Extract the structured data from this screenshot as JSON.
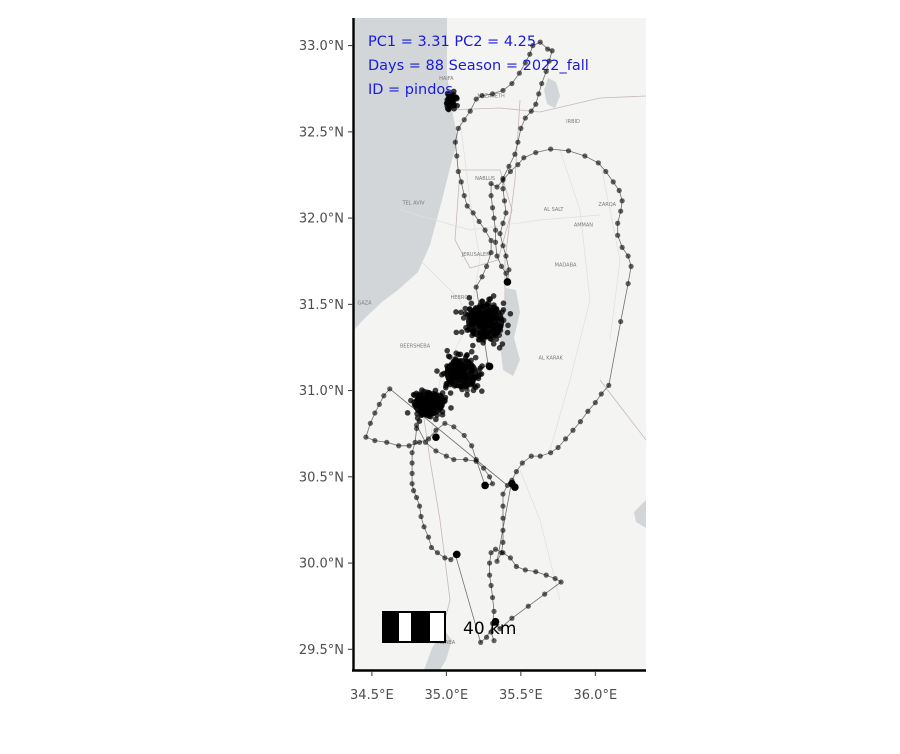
{
  "annotation": {
    "line1": "PC1 = 3.31  PC2 = 4.25",
    "line2": "Days = 88  Season = 2022_fall",
    "line3": "ID = pindos"
  },
  "scale_bar": {
    "label": "40 km"
  },
  "colors": {
    "sea": "#d2d6d8",
    "land": "#f4f4f2",
    "track": "#000000",
    "annotation": "#1a1adb"
  },
  "basemap_places": [
    "HAIFA",
    "NAZARETH",
    "IRBID",
    "TEL AVIV",
    "NABLUS",
    "AL SALT",
    "ZARQA",
    "AMMAN",
    "JERUSALEM",
    "HEBRON",
    "GAZA",
    "BEERSHEBA",
    "MADABA",
    "AL KARAK",
    "AQABA"
  ],
  "chart_data": {
    "type": "map",
    "xlim": [
      34.38,
      36.34
    ],
    "ylim": [
      29.38,
      33.16
    ],
    "x_ticks": [
      34.5,
      35.0,
      35.5,
      36.0
    ],
    "x_tick_labels": [
      "34.5°E",
      "35.0°E",
      "35.5°E",
      "36.0°E"
    ],
    "y_ticks": [
      29.5,
      30.0,
      30.5,
      31.0,
      31.5,
      32.0,
      32.5,
      33.0
    ],
    "y_tick_labels": [
      "29.5°N",
      "30.0°N",
      "30.5°N",
      "31.0°N",
      "31.5°N",
      "32.0°N",
      "32.5°N",
      "33.0°N"
    ],
    "grid": false,
    "track": [
      [
        35.32,
        29.55
      ],
      [
        35.3,
        29.6
      ],
      [
        35.31,
        29.65
      ],
      [
        35.32,
        29.72
      ],
      [
        35.31,
        29.8
      ],
      [
        35.3,
        29.87
      ],
      [
        35.29,
        29.93
      ],
      [
        35.29,
        30.0
      ],
      [
        35.3,
        30.06
      ],
      [
        35.33,
        30.08
      ],
      [
        35.38,
        30.06
      ],
      [
        35.43,
        30.03
      ],
      [
        35.47,
        29.98
      ],
      [
        35.53,
        29.96
      ],
      [
        35.6,
        29.95
      ],
      [
        35.67,
        29.93
      ],
      [
        35.73,
        29.91
      ],
      [
        35.77,
        29.89
      ],
      [
        35.66,
        29.82
      ],
      [
        35.55,
        29.75
      ],
      [
        35.44,
        29.68
      ],
      [
        35.36,
        29.62
      ],
      [
        35.32,
        29.65
      ],
      [
        35.27,
        29.57
      ],
      [
        35.23,
        29.54
      ],
      [
        35.06,
        30.05
      ],
      [
        35.03,
        30.02
      ],
      [
        34.99,
        30.03
      ],
      [
        34.94,
        30.06
      ],
      [
        34.9,
        30.09
      ],
      [
        34.88,
        30.15
      ],
      [
        34.85,
        30.21
      ],
      [
        34.83,
        30.27
      ],
      [
        34.82,
        30.33
      ],
      [
        34.8,
        30.38
      ],
      [
        34.78,
        30.42
      ],
      [
        34.77,
        30.46
      ],
      [
        34.77,
        30.52
      ],
      [
        34.77,
        30.58
      ],
      [
        34.77,
        30.64
      ],
      [
        34.79,
        30.7
      ],
      [
        34.8,
        30.78
      ],
      [
        34.8,
        30.8
      ],
      [
        34.86,
        30.7
      ],
      [
        34.93,
        30.65
      ],
      [
        35.0,
        30.62
      ],
      [
        35.05,
        30.6
      ],
      [
        35.13,
        30.6
      ],
      [
        35.2,
        30.59
      ],
      [
        35.25,
        30.55
      ],
      [
        35.29,
        30.5
      ],
      [
        35.31,
        30.46
      ],
      [
        35.26,
        30.45
      ],
      [
        35.2,
        30.6
      ],
      [
        35.17,
        30.68
      ],
      [
        35.12,
        30.74
      ],
      [
        35.05,
        30.79
      ],
      [
        34.99,
        30.81
      ],
      [
        34.93,
        30.77
      ],
      [
        34.88,
        30.72
      ],
      [
        34.82,
        30.7
      ],
      [
        34.75,
        30.68
      ],
      [
        34.68,
        30.68
      ],
      [
        34.6,
        30.7
      ],
      [
        34.52,
        30.71
      ],
      [
        34.46,
        30.73
      ],
      [
        34.49,
        30.81
      ],
      [
        34.52,
        30.87
      ],
      [
        34.55,
        30.92
      ],
      [
        34.58,
        30.97
      ],
      [
        34.62,
        31.01
      ],
      [
        35.41,
        30.45
      ],
      [
        35.38,
        30.4
      ],
      [
        35.38,
        30.33
      ],
      [
        35.38,
        30.26
      ],
      [
        35.38,
        30.19
      ],
      [
        35.38,
        30.12
      ],
      [
        35.37,
        30.06
      ],
      [
        35.34,
        30.01
      ],
      [
        35.44,
        30.48
      ],
      [
        35.47,
        30.53
      ],
      [
        35.51,
        30.58
      ],
      [
        35.57,
        30.62
      ],
      [
        35.63,
        30.62
      ],
      [
        35.7,
        30.64
      ],
      [
        35.75,
        30.67
      ],
      [
        35.8,
        30.72
      ],
      [
        35.85,
        30.77
      ],
      [
        35.9,
        30.82
      ],
      [
        35.95,
        30.88
      ],
      [
        36.0,
        30.93
      ],
      [
        36.04,
        30.98
      ],
      [
        36.09,
        31.03
      ],
      [
        36.17,
        31.4
      ],
      [
        36.22,
        31.62
      ],
      [
        36.24,
        31.72
      ],
      [
        36.22,
        31.78
      ],
      [
        36.18,
        31.83
      ],
      [
        36.15,
        31.9
      ],
      [
        36.15,
        31.97
      ],
      [
        36.17,
        32.04
      ],
      [
        36.18,
        32.1
      ],
      [
        36.16,
        32.16
      ],
      [
        36.12,
        32.21
      ],
      [
        36.07,
        32.27
      ],
      [
        36.02,
        32.32
      ],
      [
        35.93,
        32.36
      ],
      [
        35.82,
        32.39
      ],
      [
        35.7,
        32.4
      ],
      [
        35.6,
        32.38
      ],
      [
        35.52,
        32.35
      ],
      [
        35.48,
        32.31
      ],
      [
        35.43,
        32.27
      ],
      [
        35.38,
        32.22
      ],
      [
        35.34,
        32.18
      ],
      [
        35.3,
        32.2
      ],
      [
        35.3,
        32.13
      ],
      [
        35.31,
        32.06
      ],
      [
        35.32,
        32.0
      ],
      [
        35.33,
        31.93
      ],
      [
        35.33,
        31.86
      ],
      [
        35.34,
        31.78
      ],
      [
        35.37,
        31.72
      ],
      [
        35.4,
        31.68
      ],
      [
        35.41,
        31.63
      ],
      [
        35.42,
        31.7
      ],
      [
        35.4,
        31.78
      ],
      [
        35.38,
        31.84
      ],
      [
        35.36,
        31.91
      ],
      [
        35.38,
        31.97
      ],
      [
        35.4,
        32.03
      ],
      [
        35.39,
        32.1
      ],
      [
        35.38,
        32.17
      ],
      [
        35.38,
        32.23
      ],
      [
        35.42,
        32.3
      ],
      [
        35.46,
        32.37
      ],
      [
        35.48,
        32.44
      ],
      [
        35.5,
        32.52
      ],
      [
        35.53,
        32.58
      ],
      [
        35.57,
        32.62
      ],
      [
        35.6,
        32.66
      ],
      [
        35.62,
        32.72
      ],
      [
        35.64,
        32.78
      ],
      [
        35.67,
        32.85
      ],
      [
        35.69,
        32.91
      ],
      [
        35.71,
        32.97
      ],
      [
        35.68,
        32.98
      ],
      [
        35.63,
        33.02
      ],
      [
        35.58,
        33.0
      ],
      [
        35.56,
        32.95
      ],
      [
        35.53,
        32.9
      ],
      [
        35.49,
        32.84
      ],
      [
        35.44,
        32.78
      ],
      [
        35.38,
        32.74
      ],
      [
        35.31,
        32.72
      ],
      [
        35.24,
        32.71
      ],
      [
        35.2,
        32.69
      ],
      [
        35.16,
        32.62
      ],
      [
        35.12,
        32.57
      ],
      [
        35.08,
        32.52
      ],
      [
        35.06,
        32.44
      ],
      [
        35.07,
        32.36
      ],
      [
        35.08,
        32.27
      ],
      [
        35.1,
        32.21
      ],
      [
        35.12,
        32.13
      ],
      [
        35.14,
        32.07
      ],
      [
        35.18,
        32.03
      ],
      [
        35.22,
        31.98
      ],
      [
        35.26,
        31.93
      ],
      [
        35.3,
        31.87
      ],
      [
        35.3,
        31.8
      ],
      [
        35.27,
        31.72
      ],
      [
        35.24,
        31.66
      ],
      [
        35.2,
        31.6
      ],
      [
        35.28,
        31.15
      ],
      [
        35.22,
        31.12
      ],
      [
        35.18,
        31.05
      ],
      [
        35.14,
        31.0
      ]
    ],
    "dense_clusters": [
      {
        "lon": 35.26,
        "lat": 31.4,
        "spread_lon": 0.16,
        "spread_lat": 0.13,
        "n": 160
      },
      {
        "lon": 35.1,
        "lat": 31.1,
        "spread_lon": 0.14,
        "spread_lat": 0.11,
        "n": 130
      },
      {
        "lon": 34.88,
        "lat": 30.92,
        "spread_lon": 0.13,
        "spread_lat": 0.09,
        "n": 140
      },
      {
        "lon": 35.03,
        "lat": 32.68,
        "spread_lon": 0.04,
        "spread_lat": 0.06,
        "n": 45
      }
    ],
    "markers": [
      [
        35.41,
        31.63
      ],
      [
        35.29,
        31.14
      ],
      [
        34.93,
        30.73
      ],
      [
        35.26,
        30.45
      ],
      [
        35.44,
        30.46
      ],
      [
        35.46,
        30.44
      ],
      [
        35.07,
        30.05
      ],
      [
        35.33,
        29.66
      ]
    ]
  }
}
